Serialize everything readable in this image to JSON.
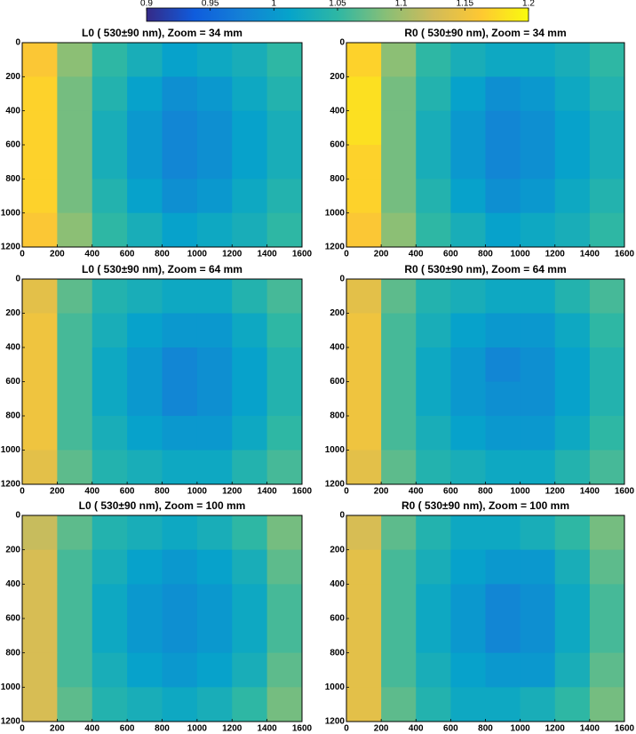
{
  "colorbar": {
    "clim": [
      0.9,
      1.2
    ],
    "ticks": [
      0.9,
      0.95,
      1,
      1.05,
      1.1,
      1.15,
      1.2
    ],
    "colors": [
      "#352a87",
      "#0f5cdd",
      "#1481d6",
      "#06a4ca",
      "#2eb7a4",
      "#87bf77",
      "#d1bb59",
      "#fec832",
      "#f9fb0e"
    ]
  },
  "chart_data": [
    {
      "type": "heatmap",
      "title": "L0 ( 530±90 nm), Zoom = 34 mm",
      "x": [
        100,
        300,
        500,
        700,
        900,
        1100,
        1300,
        1500
      ],
      "y": [
        100,
        300,
        500,
        700,
        900,
        1100
      ],
      "values": [
        [
          1.16,
          1.09,
          1.05,
          1.03,
          1.01,
          1.02,
          1.03,
          1.05
        ],
        [
          1.17,
          1.08,
          1.04,
          1.01,
          0.99,
          1.0,
          1.02,
          1.04
        ],
        [
          1.17,
          1.08,
          1.03,
          1.0,
          0.98,
          0.99,
          1.01,
          1.03
        ],
        [
          1.17,
          1.08,
          1.03,
          1.0,
          0.98,
          0.99,
          1.01,
          1.03
        ],
        [
          1.17,
          1.08,
          1.04,
          1.01,
          0.99,
          1.0,
          1.02,
          1.04
        ],
        [
          1.16,
          1.09,
          1.05,
          1.03,
          1.01,
          1.02,
          1.03,
          1.05
        ]
      ],
      "xlim": [
        0,
        1600
      ],
      "ylim": [
        0,
        1200
      ],
      "y_reversed": true,
      "xticks": [
        0,
        200,
        400,
        600,
        800,
        1000,
        1200,
        1400,
        1600
      ],
      "yticks": [
        0,
        200,
        400,
        600,
        800,
        1000,
        1200
      ]
    },
    {
      "type": "heatmap",
      "title": "R0 ( 530±90 nm), Zoom = 34 mm",
      "x": [
        100,
        300,
        500,
        700,
        900,
        1100,
        1300,
        1500
      ],
      "y": [
        100,
        300,
        500,
        700,
        900,
        1100
      ],
      "values": [
        [
          1.17,
          1.09,
          1.05,
          1.03,
          1.02,
          1.02,
          1.03,
          1.05
        ],
        [
          1.18,
          1.08,
          1.04,
          1.01,
          0.99,
          1.0,
          1.02,
          1.04
        ],
        [
          1.18,
          1.08,
          1.03,
          1.0,
          0.98,
          0.99,
          1.01,
          1.03
        ],
        [
          1.17,
          1.08,
          1.03,
          1.0,
          0.98,
          0.99,
          1.01,
          1.03
        ],
        [
          1.17,
          1.08,
          1.04,
          1.01,
          0.99,
          1.0,
          1.02,
          1.04
        ],
        [
          1.16,
          1.09,
          1.05,
          1.03,
          1.01,
          1.02,
          1.03,
          1.05
        ]
      ],
      "xlim": [
        0,
        1600
      ],
      "ylim": [
        0,
        1200
      ],
      "y_reversed": true,
      "xticks": [
        0,
        200,
        400,
        600,
        800,
        1000,
        1200,
        1400,
        1600
      ],
      "yticks": [
        0,
        200,
        400,
        600,
        800,
        1000,
        1200
      ]
    },
    {
      "type": "heatmap",
      "title": "L0 ( 530±90 nm), Zoom = 64 mm",
      "x": [
        100,
        300,
        500,
        700,
        900,
        1100,
        1300,
        1500
      ],
      "y": [
        100,
        300,
        500,
        700,
        900,
        1100
      ],
      "values": [
        [
          1.14,
          1.07,
          1.04,
          1.03,
          1.02,
          1.02,
          1.04,
          1.06
        ],
        [
          1.15,
          1.06,
          1.03,
          1.01,
          1.0,
          1.0,
          1.02,
          1.05
        ],
        [
          1.15,
          1.06,
          1.02,
          1.0,
          0.98,
          0.99,
          1.01,
          1.04
        ],
        [
          1.15,
          1.06,
          1.02,
          1.0,
          0.98,
          0.99,
          1.01,
          1.04
        ],
        [
          1.15,
          1.06,
          1.03,
          1.01,
          1.0,
          1.0,
          1.02,
          1.05
        ],
        [
          1.14,
          1.07,
          1.04,
          1.03,
          1.02,
          1.02,
          1.04,
          1.06
        ]
      ],
      "xlim": [
        0,
        1600
      ],
      "ylim": [
        0,
        1200
      ],
      "y_reversed": true,
      "xticks": [
        0,
        200,
        400,
        600,
        800,
        1000,
        1200,
        1400,
        1600
      ],
      "yticks": [
        0,
        200,
        400,
        600,
        800,
        1000,
        1200
      ]
    },
    {
      "type": "heatmap",
      "title": "R0 ( 530±90 nm), Zoom = 64 mm",
      "x": [
        100,
        300,
        500,
        700,
        900,
        1100,
        1300,
        1500
      ],
      "y": [
        100,
        300,
        500,
        700,
        900,
        1100
      ],
      "values": [
        [
          1.14,
          1.07,
          1.04,
          1.03,
          1.02,
          1.02,
          1.04,
          1.06
        ],
        [
          1.15,
          1.06,
          1.03,
          1.01,
          1.0,
          1.0,
          1.02,
          1.05
        ],
        [
          1.15,
          1.06,
          1.02,
          1.0,
          0.98,
          0.99,
          1.01,
          1.04
        ],
        [
          1.15,
          1.06,
          1.02,
          1.0,
          0.99,
          0.99,
          1.01,
          1.04
        ],
        [
          1.15,
          1.06,
          1.03,
          1.01,
          1.0,
          1.0,
          1.02,
          1.05
        ],
        [
          1.14,
          1.07,
          1.04,
          1.03,
          1.02,
          1.02,
          1.04,
          1.06
        ]
      ],
      "xlim": [
        0,
        1600
      ],
      "ylim": [
        0,
        1200
      ],
      "y_reversed": true,
      "xticks": [
        0,
        200,
        400,
        600,
        800,
        1000,
        1200,
        1400,
        1600
      ],
      "yticks": [
        0,
        200,
        400,
        600,
        800,
        1000,
        1200
      ]
    },
    {
      "type": "heatmap",
      "title": "L0 ( 530±90 nm), Zoom = 100 mm",
      "x": [
        100,
        300,
        500,
        700,
        900,
        1100,
        1300,
        1500
      ],
      "y": [
        100,
        300,
        500,
        700,
        900,
        1100
      ],
      "values": [
        [
          1.12,
          1.07,
          1.04,
          1.03,
          1.02,
          1.03,
          1.05,
          1.08
        ],
        [
          1.13,
          1.06,
          1.03,
          1.01,
          1.0,
          1.01,
          1.03,
          1.07
        ],
        [
          1.13,
          1.06,
          1.02,
          1.0,
          0.99,
          1.0,
          1.02,
          1.06
        ],
        [
          1.13,
          1.06,
          1.02,
          1.0,
          0.99,
          1.0,
          1.02,
          1.06
        ],
        [
          1.13,
          1.06,
          1.03,
          1.01,
          1.0,
          1.01,
          1.03,
          1.07
        ],
        [
          1.13,
          1.07,
          1.04,
          1.03,
          1.02,
          1.03,
          1.05,
          1.08
        ]
      ],
      "xlim": [
        0,
        1600
      ],
      "ylim": [
        0,
        1200
      ],
      "y_reversed": true,
      "xticks": [
        0,
        200,
        400,
        600,
        800,
        1000,
        1200,
        1400,
        1600
      ],
      "yticks": [
        0,
        200,
        400,
        600,
        800,
        1000,
        1200
      ]
    },
    {
      "type": "heatmap",
      "title": "R0 ( 530±90 nm), Zoom = 100 mm",
      "x": [
        100,
        300,
        500,
        700,
        900,
        1100,
        1300,
        1500
      ],
      "y": [
        100,
        300,
        500,
        700,
        900,
        1100
      ],
      "values": [
        [
          1.13,
          1.07,
          1.04,
          1.02,
          1.02,
          1.03,
          1.05,
          1.08
        ],
        [
          1.14,
          1.06,
          1.03,
          1.01,
          1.0,
          1.0,
          1.03,
          1.07
        ],
        [
          1.14,
          1.06,
          1.02,
          1.0,
          0.98,
          0.99,
          1.02,
          1.06
        ],
        [
          1.14,
          1.06,
          1.02,
          1.0,
          0.98,
          0.99,
          1.02,
          1.06
        ],
        [
          1.14,
          1.06,
          1.03,
          1.01,
          1.0,
          1.0,
          1.03,
          1.07
        ],
        [
          1.14,
          1.07,
          1.04,
          1.02,
          1.02,
          1.03,
          1.05,
          1.08
        ]
      ],
      "xlim": [
        0,
        1600
      ],
      "ylim": [
        0,
        1200
      ],
      "y_reversed": true,
      "xticks": [
        0,
        200,
        400,
        600,
        800,
        1000,
        1200,
        1400,
        1600
      ],
      "yticks": [
        0,
        200,
        400,
        600,
        800,
        1000,
        1200
      ]
    }
  ]
}
